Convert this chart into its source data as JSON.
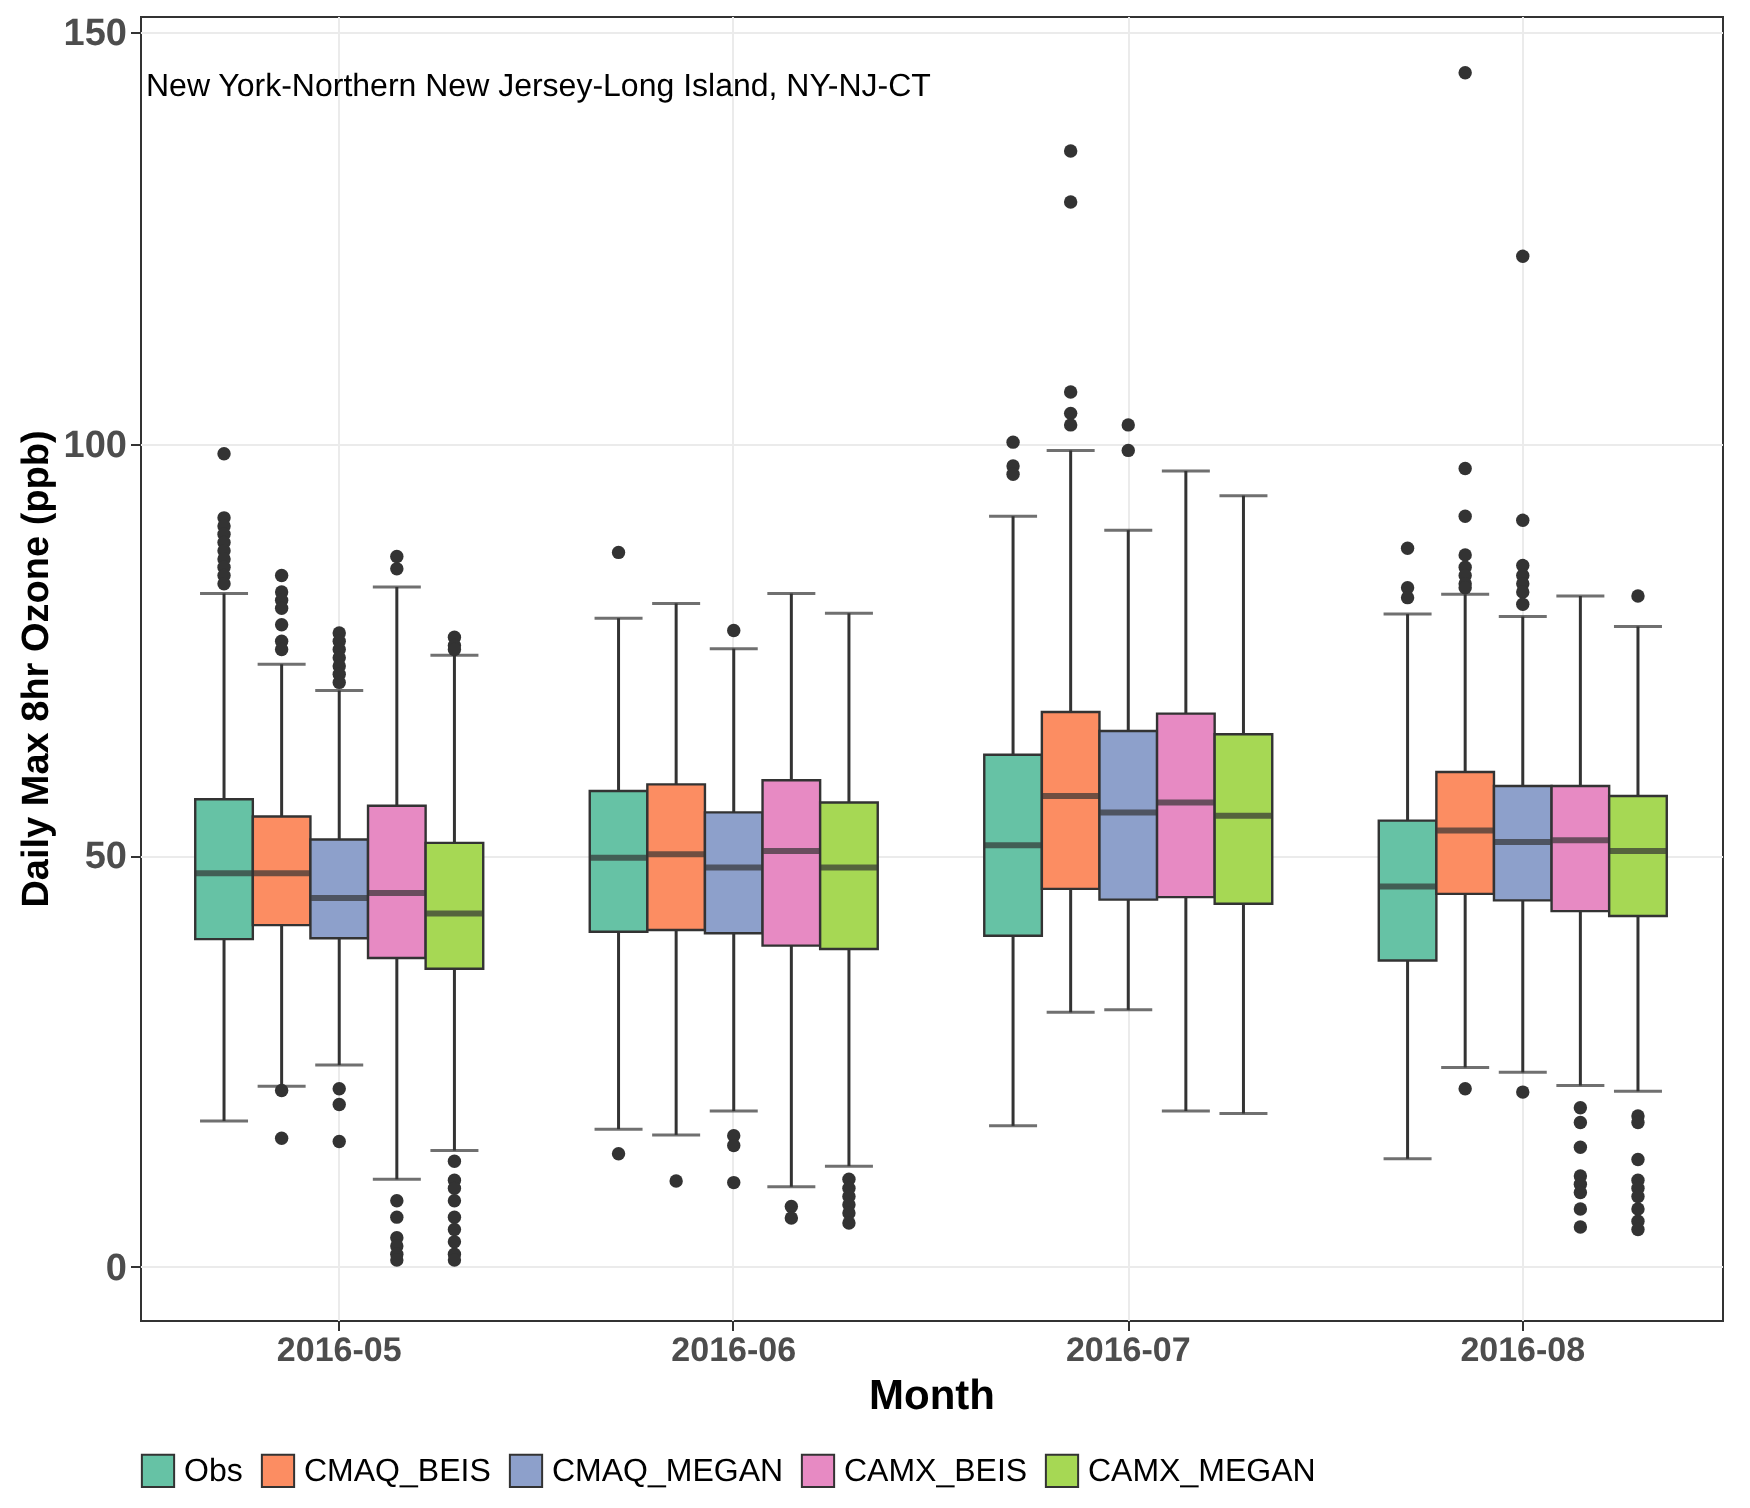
{
  "chart_data": {
    "type": "box",
    "title": "New York-Northern New Jersey-Long Island, NY-NJ-CT",
    "xlabel": "Month",
    "ylabel": "Daily Max 8hr Ozone (ppb)",
    "categories": [
      "2016-05",
      "2016-06",
      "2016-07",
      "2016-08"
    ],
    "ylim": [
      -6.5,
      152
    ],
    "yticks": [
      0,
      50,
      100,
      150
    ],
    "grid": true,
    "legend": "bottom",
    "series": [
      {
        "name": "Obs",
        "color": "#66c2a5",
        "boxes": [
          {
            "low": 17.7,
            "q1": 39.8,
            "median": 47.8,
            "q3": 56.8,
            "high": 81.8,
            "outliers": [
              98.8,
              91,
              90,
              89,
              88,
              87,
              86,
              85,
              84,
              83
            ]
          },
          {
            "low": 16.7,
            "q1": 40.7,
            "median": 49.7,
            "q3": 57.8,
            "high": 78.8,
            "outliers": [
              86.8,
              13.7
            ]
          },
          {
            "low": 17.1,
            "q1": 40.2,
            "median": 51.2,
            "q3": 62.2,
            "high": 91.2,
            "outliers": [
              100.2,
              97.3,
              96.3
            ]
          },
          {
            "low": 13.1,
            "q1": 37.2,
            "median": 46.2,
            "q3": 54.2,
            "high": 79.3,
            "outliers": [
              87.3,
              82.5,
              81.3
            ]
          }
        ]
      },
      {
        "name": "CMAQ_BEIS",
        "color": "#fc8d62",
        "boxes": [
          {
            "low": 21.9,
            "q1": 41.5,
            "median": 47.8,
            "q3": 54.7,
            "high": 73.2,
            "outliers": [
              84,
              82,
              81,
              80,
              78,
              76,
              75,
              21.4,
              15.6
            ]
          },
          {
            "low": 16,
            "q1": 40.9,
            "median": 50.1,
            "q3": 58.6,
            "high": 80.6,
            "outliers": [
              10.4
            ]
          },
          {
            "low": 30.9,
            "q1": 45.9,
            "median": 57.2,
            "q3": 67.4,
            "high": 99.2,
            "outliers": [
              135.6,
              129.4,
              106.3,
              103.7,
              102.3
            ]
          },
          {
            "low": 24.2,
            "q1": 45.3,
            "median": 53,
            "q3": 60.1,
            "high": 81.7,
            "outliers": [
              145.1,
              97,
              91.2,
              86.5,
              85,
              84,
              83,
              82.5,
              21.6
            ]
          }
        ]
      },
      {
        "name": "CMAQ_MEGAN",
        "color": "#8da0cb",
        "boxes": [
          {
            "low": 24.5,
            "q1": 39.9,
            "median": 44.8,
            "q3": 51.9,
            "high": 70,
            "outliers": [
              77,
              76,
              75,
              74,
              73,
              72,
              71,
              21.6,
              19.7,
              15.2
            ]
          },
          {
            "low": 18.9,
            "q1": 40.5,
            "median": 48.5,
            "q3": 55.2,
            "high": 75.1,
            "outliers": [
              77.3,
              15.9,
              14.7,
              10.2
            ]
          },
          {
            "low": 31.2,
            "q1": 44.6,
            "median": 55.2,
            "q3": 65.1,
            "high": 89.5,
            "outliers": [
              102.3,
              99.2
            ]
          },
          {
            "low": 23.6,
            "q1": 44.5,
            "median": 51.6,
            "q3": 58.4,
            "high": 79,
            "outliers": [
              122.8,
              90.7,
              85.2,
              84,
              83,
              82,
              80.5,
              21.2
            ]
          }
        ]
      },
      {
        "name": "CAMX_BEIS",
        "color": "#e78ac3",
        "boxes": [
          {
            "low": 10.6,
            "q1": 37.5,
            "median": 45.4,
            "q3": 56,
            "high": 82.6,
            "outliers": [
              86.3,
              84.8,
              8,
              6,
              3.5,
              2.5,
              1.5,
              0.8
            ]
          },
          {
            "low": 9.7,
            "q1": 39,
            "median": 50.5,
            "q3": 59.1,
            "high": 81.8,
            "outliers": [
              7.3,
              5.9
            ]
          },
          {
            "low": 18.9,
            "q1": 44.9,
            "median": 56.4,
            "q3": 67.2,
            "high": 96.7
          },
          {
            "low": 22,
            "q1": 43.2,
            "median": 51.8,
            "q3": 58.4,
            "high": 81.5,
            "outliers": [
              19.3,
              17.5,
              14.5,
              11,
              10,
              9,
              7,
              4.8
            ]
          }
        ]
      },
      {
        "name": "CAMX_MEGAN",
        "color": "#a6d854",
        "boxes": [
          {
            "low": 14.1,
            "q1": 36.2,
            "median": 42.9,
            "q3": 51.5,
            "high": 74.3,
            "outliers": [
              76.5,
              75.5,
              75,
              12.8,
              10.5,
              9.5,
              8,
              6,
              4.5,
              3,
              1.5,
              0.8
            ]
          },
          {
            "low": 12.2,
            "q1": 38.6,
            "median": 48.5,
            "q3": 56.4,
            "high": 79.4,
            "outliers": [
              10.6,
              9.5,
              8.5,
              7.5,
              6.5,
              5.3
            ]
          },
          {
            "low": 18.6,
            "q1": 44.1,
            "median": 54.8,
            "q3": 64.7,
            "high": 93.7
          },
          {
            "low": 21.3,
            "q1": 42.6,
            "median": 50.5,
            "q3": 57.2,
            "high": 77.8,
            "outliers": [
              81.5,
              18.3,
              17.5,
              13,
              10.5,
              9.5,
              8.5,
              7,
              5.5,
              4.5
            ]
          }
        ]
      }
    ]
  }
}
